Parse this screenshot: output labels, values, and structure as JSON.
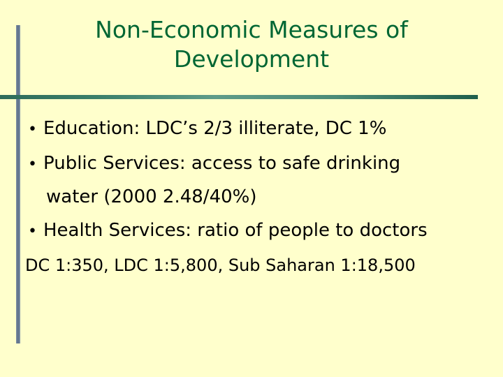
{
  "slide": {
    "title_line1": "Non-Economic Measures of",
    "title_line2": "Development",
    "bullet_symbol": "•",
    "bullets": [
      {
        "text": "Education: LDC’s 2/3 illiterate, DC 1%"
      },
      {
        "text": "Public Services: access to safe drinking"
      },
      {
        "text": "Health Services: ratio of people to doctors"
      }
    ],
    "continuation": "water (2000 2.48/40%)",
    "footer_line": "DC 1:350, LDC 1:5,800, Sub Saharan 1:18,500"
  },
  "colors": {
    "background": "#ffffcc",
    "title": "#006633",
    "body_text": "#000000",
    "vertical_rule": "#5b6e87",
    "horizontal_rule": "#3a7f6a"
  }
}
